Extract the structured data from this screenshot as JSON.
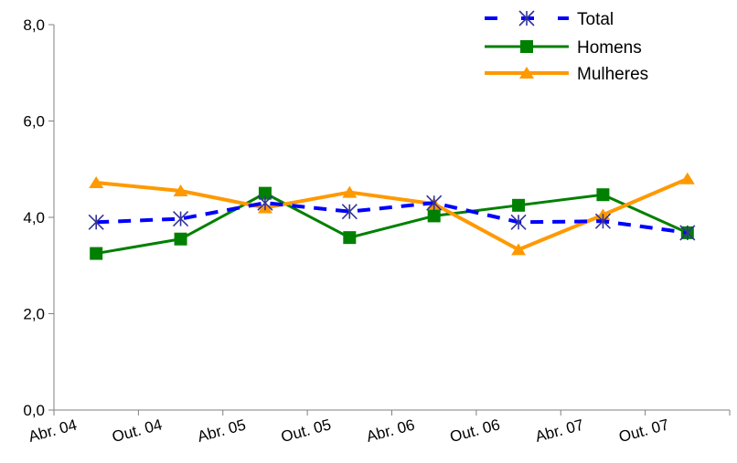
{
  "chart_data": {
    "type": "line",
    "categories": [
      "Abr. 04",
      "Out. 04",
      "Abr. 05",
      "Out. 05",
      "Abr. 06",
      "Out. 06",
      "Abr. 07",
      "Out. 07"
    ],
    "ylim": [
      0,
      8
    ],
    "yticks": [
      "0,0",
      "2,0",
      "4,0",
      "6,0",
      "8,0"
    ],
    "ytick_values": [
      0,
      2,
      4,
      6,
      8
    ],
    "grid": false,
    "legend_position": "top-right",
    "series": [
      {
        "name": "Total",
        "values": [
          3.9,
          3.97,
          4.3,
          4.12,
          4.3,
          3.9,
          3.92,
          3.68
        ],
        "color": "#0000ff",
        "marker": "asterisk",
        "line": "dashed"
      },
      {
        "name": "Homens",
        "values": [
          3.25,
          3.55,
          4.5,
          3.58,
          4.03,
          4.25,
          4.47,
          3.68
        ],
        "color": "#008000",
        "marker": "square",
        "line": "solid"
      },
      {
        "name": "Mulheres",
        "values": [
          4.72,
          4.55,
          4.2,
          4.52,
          4.28,
          3.33,
          4.05,
          4.8
        ],
        "color": "#ff9900",
        "marker": "triangle",
        "line": "solid"
      }
    ]
  }
}
